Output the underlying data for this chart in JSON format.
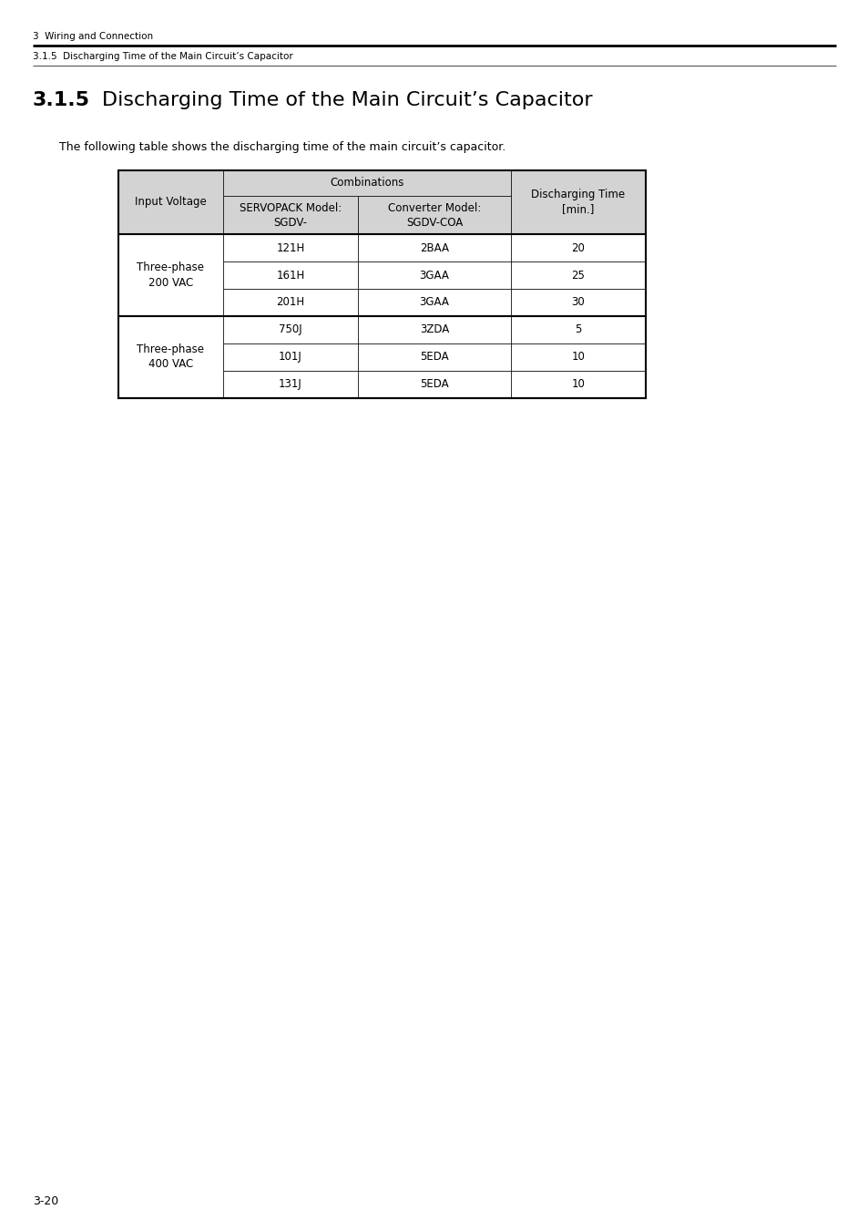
{
  "page_width": 9.54,
  "page_height": 13.5,
  "bg_color": "#ffffff",
  "header_line1": "3  Wiring and Connection",
  "header_line2": "3.1.5  Discharging Time of the Main Circuit’s Capacitor",
  "section_number": "3.1.5",
  "section_title": "Discharging Time of the Main Circuit’s Capacitor",
  "intro_text": "The following table shows the discharging time of the main circuit’s capacitor.",
  "footer_text": "3-20",
  "table_header_bg": "#d3d3d3",
  "table_data_bg": "#ffffff",
  "table_border_color": "#000000",
  "table_rows": [
    [
      "Three-phase\n200 VAC",
      "121H",
      "2BAA",
      "20"
    ],
    [
      "Three-phase\n200 VAC",
      "161H",
      "3GAA",
      "25"
    ],
    [
      "Three-phase\n200 VAC",
      "201H",
      "3GAA",
      "30"
    ],
    [
      "Three-phase\n400 VAC",
      "750J",
      "3ZDA",
      "5"
    ],
    [
      "Three-phase\n400 VAC",
      "101J",
      "5EDA",
      "10"
    ],
    [
      "Three-phase\n400 VAC",
      "131J",
      "5EDA",
      "10"
    ]
  ]
}
